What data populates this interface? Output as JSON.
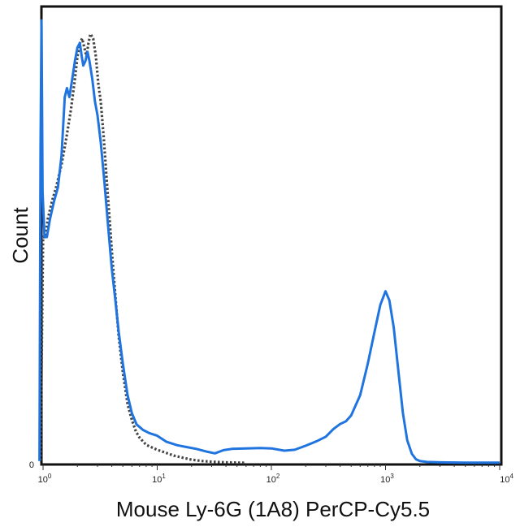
{
  "chart_data": {
    "type": "line",
    "title": "",
    "xlabel": "Mouse Ly-6G (1A8) PerCP-Cy5.5",
    "ylabel": "Count",
    "x_scale": "log",
    "xlim": [
      1,
      10000
    ],
    "ylim": [
      0,
      100
    ],
    "y_tick_labels": [
      "0"
    ],
    "x_ticks": [
      {
        "value": 1,
        "base": "10",
        "exp": "0"
      },
      {
        "value": 10,
        "base": "10",
        "exp": "1"
      },
      {
        "value": 100,
        "base": "10",
        "exp": "2"
      },
      {
        "value": 1000,
        "base": "10",
        "exp": "3"
      },
      {
        "value": 10000,
        "base": "10",
        "exp": "4"
      }
    ],
    "grid": false,
    "series": [
      {
        "style": "dotted",
        "color": "#444444",
        "points": [
          [
            0.95,
            0.5
          ],
          [
            1.0,
            50
          ],
          [
            1.05,
            50
          ],
          [
            1.1,
            54
          ],
          [
            1.2,
            58
          ],
          [
            1.3,
            61
          ],
          [
            1.45,
            66
          ],
          [
            1.6,
            72
          ],
          [
            1.75,
            78
          ],
          [
            1.9,
            85
          ],
          [
            2.0,
            90
          ],
          [
            2.1,
            93
          ],
          [
            2.2,
            94
          ],
          [
            2.3,
            92
          ],
          [
            2.4,
            90
          ],
          [
            2.5,
            93
          ],
          [
            2.6,
            95
          ],
          [
            2.75,
            94
          ],
          [
            2.9,
            90
          ],
          [
            3.05,
            84
          ],
          [
            3.2,
            80
          ],
          [
            3.4,
            72
          ],
          [
            3.6,
            63
          ],
          [
            3.8,
            55
          ],
          [
            4.0,
            47
          ],
          [
            4.3,
            37
          ],
          [
            4.6,
            28
          ],
          [
            5.0,
            20
          ],
          [
            5.5,
            13
          ],
          [
            6.0,
            9.5
          ],
          [
            6.5,
            7
          ],
          [
            7.0,
            5.6
          ],
          [
            8.0,
            4
          ],
          [
            9.0,
            3.4
          ],
          [
            10.0,
            2.9
          ],
          [
            12.0,
            2.2
          ],
          [
            14.0,
            1.6
          ],
          [
            17.0,
            1.1
          ],
          [
            20.0,
            0.7
          ],
          [
            25.0,
            0.4
          ],
          [
            30.0,
            0.25
          ],
          [
            40.0,
            0.1
          ],
          [
            50.0,
            0.05
          ],
          [
            60.0,
            0.0
          ]
        ]
      },
      {
        "style": "solid",
        "color": "#1f74e0",
        "points": [
          [
            0.93,
            0.4
          ],
          [
            0.95,
            70
          ],
          [
            0.97,
            98
          ],
          [
            0.99,
            60
          ],
          [
            1.03,
            50
          ],
          [
            1.08,
            50
          ],
          [
            1.15,
            54
          ],
          [
            1.25,
            58
          ],
          [
            1.35,
            61
          ],
          [
            1.45,
            68
          ],
          [
            1.55,
            81
          ],
          [
            1.62,
            83
          ],
          [
            1.7,
            81
          ],
          [
            1.8,
            85
          ],
          [
            1.9,
            89
          ],
          [
            2.0,
            92
          ],
          [
            2.1,
            93
          ],
          [
            2.18,
            90
          ],
          [
            2.25,
            88
          ],
          [
            2.35,
            89
          ],
          [
            2.45,
            91
          ],
          [
            2.55,
            89
          ],
          [
            2.7,
            85
          ],
          [
            2.85,
            80
          ],
          [
            3.0,
            77
          ],
          [
            3.2,
            71
          ],
          [
            3.45,
            62
          ],
          [
            3.7,
            53
          ],
          [
            4.0,
            43
          ],
          [
            4.3,
            36
          ],
          [
            4.6,
            29
          ],
          [
            5.0,
            22
          ],
          [
            5.5,
            15
          ],
          [
            6.0,
            11
          ],
          [
            6.6,
            8.5
          ],
          [
            7.5,
            7.3
          ],
          [
            8.5,
            6.6
          ],
          [
            10,
            6
          ],
          [
            12,
            4.7
          ],
          [
            15,
            3.9
          ],
          [
            18,
            3.5
          ],
          [
            22,
            3.1
          ],
          [
            27,
            2.5
          ],
          [
            32,
            2.1
          ],
          [
            38,
            2.8
          ],
          [
            45,
            3.1
          ],
          [
            60,
            3.2
          ],
          [
            80,
            3.3
          ],
          [
            100,
            3.2
          ],
          [
            130,
            2.7
          ],
          [
            160,
            2.9
          ],
          [
            200,
            3.8
          ],
          [
            250,
            4.8
          ],
          [
            300,
            5.8
          ],
          [
            350,
            7.5
          ],
          [
            400,
            8.6
          ],
          [
            450,
            9.2
          ],
          [
            500,
            10.5
          ],
          [
            600,
            15
          ],
          [
            700,
            22
          ],
          [
            800,
            29
          ],
          [
            900,
            35
          ],
          [
            1000,
            38
          ],
          [
            1080,
            36
          ],
          [
            1180,
            30
          ],
          [
            1300,
            20
          ],
          [
            1420,
            11
          ],
          [
            1550,
            5
          ],
          [
            1700,
            2
          ],
          [
            1850,
            0.8
          ],
          [
            2000,
            0.4
          ],
          [
            2300,
            0.2
          ],
          [
            3000,
            0.1
          ],
          [
            5000,
            0.05
          ],
          [
            10000,
            0.05
          ]
        ]
      }
    ]
  }
}
